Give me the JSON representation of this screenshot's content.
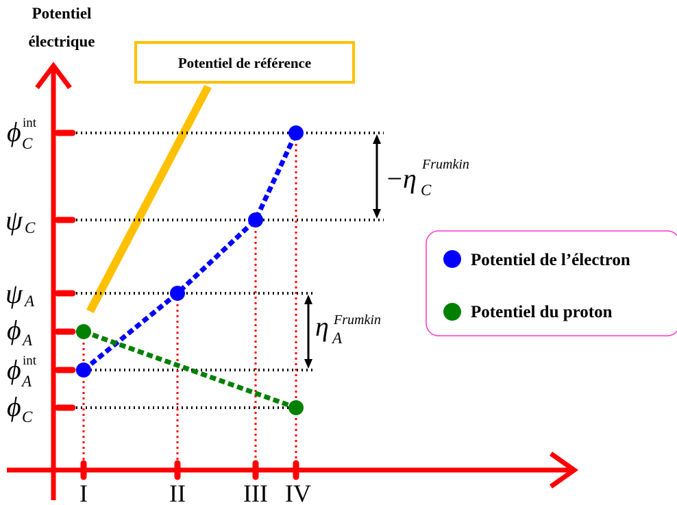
{
  "axis": {
    "title_line1": "Potentiel",
    "title_line2": "électrique",
    "color": "#ff0000"
  },
  "reference_box": {
    "label": "Potentiel de référence",
    "color": "#ffc000"
  },
  "y_levels": [
    {
      "id": "phi_c_int",
      "symbol": "ϕ",
      "sub": "C",
      "sup": "int"
    },
    {
      "id": "psi_c",
      "symbol": "ψ",
      "sub": "C",
      "sup": ""
    },
    {
      "id": "psi_a",
      "symbol": "ψ",
      "sub": "A",
      "sup": ""
    },
    {
      "id": "phi_a",
      "symbol": "ϕ",
      "sub": "A",
      "sup": ""
    },
    {
      "id": "phi_a_int",
      "symbol": "ϕ",
      "sub": "A",
      "sup": "int"
    },
    {
      "id": "phi_c",
      "symbol": "ϕ",
      "sub": "C",
      "sup": ""
    }
  ],
  "x_ticks": [
    "I",
    "II",
    "III",
    "IV"
  ],
  "electron_points": [
    "phi_a_int",
    "psi_a",
    "psi_c",
    "phi_c_int"
  ],
  "proton_points": [
    "phi_a",
    "phi_c"
  ],
  "eta_c": {
    "prefix": "−",
    "symbol": "η",
    "sub": "C",
    "sup": "Frumkin"
  },
  "eta_a": {
    "symbol": "η",
    "sub": "A",
    "sup": "Frumkin"
  },
  "legend": {
    "border_color": "#ff33cc",
    "items": [
      {
        "label": "Potentiel de l’électron",
        "color": "#0000ff"
      },
      {
        "label": "Potentiel du proton",
        "color": "#008000"
      }
    ]
  }
}
